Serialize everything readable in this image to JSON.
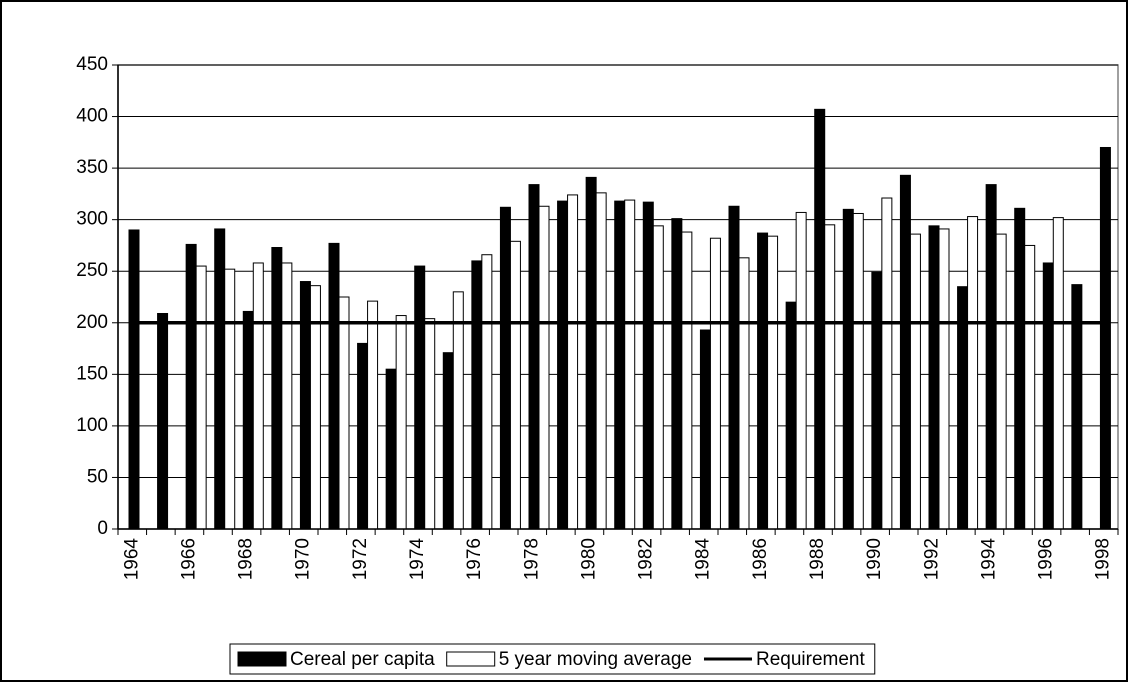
{
  "chart_data": {
    "type": "bar",
    "categories": [
      "1964",
      null,
      "1966",
      null,
      "1968",
      null,
      "1970",
      null,
      "1972",
      null,
      "1974",
      null,
      "1976",
      null,
      "1978",
      null,
      "1980",
      null,
      "1982",
      null,
      "1984",
      null,
      "1986",
      null,
      "1988",
      null,
      "1990",
      null,
      "1992",
      null,
      "1994",
      null,
      "1996",
      null,
      "1998"
    ],
    "series": [
      {
        "name": "Cereal per capita",
        "color": "#000000",
        "values": [
          290,
          209,
          276,
          291,
          211,
          273,
          240,
          277,
          180,
          155,
          255,
          171,
          260,
          312,
          334,
          318,
          341,
          318,
          317,
          301,
          193,
          313,
          287,
          220,
          407,
          310,
          249,
          343,
          294,
          235,
          334,
          311,
          258,
          237,
          370
        ]
      },
      {
        "name": "5 year moving average",
        "color": "#ffffff",
        "values": [
          null,
          null,
          255,
          252,
          258,
          258,
          236,
          225,
          221,
          207,
          204,
          230,
          266,
          279,
          313,
          324,
          326,
          319,
          294,
          288,
          282,
          263,
          284,
          307,
          295,
          306,
          321,
          286,
          291,
          303,
          286,
          275,
          302,
          null,
          null
        ]
      },
      {
        "name": "Requirement",
        "color": "#000000",
        "type": "line",
        "values": [
          200,
          200,
          200,
          200,
          200,
          200,
          200,
          200,
          200,
          200,
          200,
          200,
          200,
          200,
          200,
          200,
          200,
          200,
          200,
          200,
          200,
          200,
          200,
          200,
          200,
          200,
          200,
          200,
          200,
          200,
          200,
          200,
          200,
          200,
          200
        ]
      }
    ],
    "ylim": [
      0,
      450
    ],
    "yticks": [
      0,
      50,
      100,
      150,
      200,
      250,
      300,
      350,
      400,
      450
    ],
    "grid": true,
    "legend": "bottom"
  }
}
